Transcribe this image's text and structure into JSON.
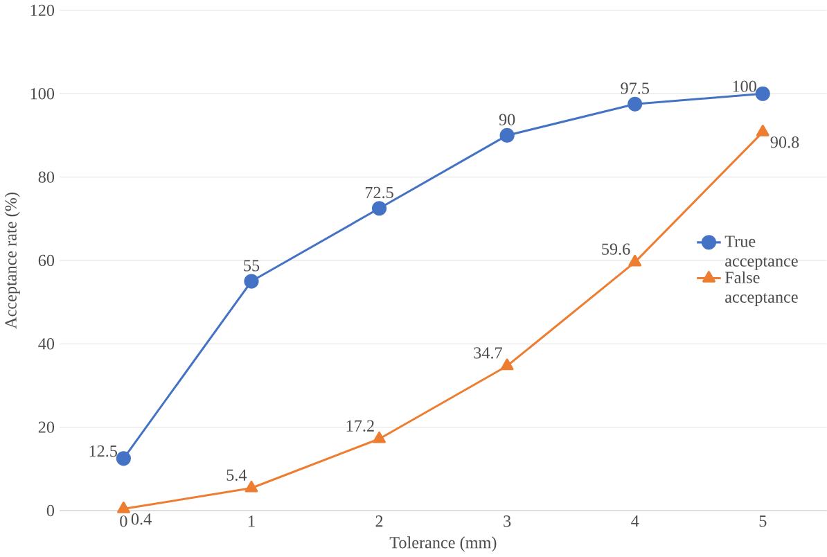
{
  "chart_data": {
    "type": "line",
    "xlabel": "Tolerance (mm)",
    "ylabel": "Acceptance rate (%)",
    "categories": [
      "0",
      "1",
      "2",
      "3",
      "4",
      "5"
    ],
    "series": [
      {
        "name": "True acceptance",
        "color": "#4472c4",
        "marker": "circle",
        "values": [
          12.5,
          55,
          72.5,
          90,
          97.5,
          100
        ]
      },
      {
        "name": "False acceptance",
        "color": "#ed7d31",
        "marker": "triangle",
        "values": [
          0.4,
          5.4,
          17.2,
          34.7,
          59.6,
          90.8
        ]
      }
    ],
    "ylim": [
      0,
      120
    ],
    "yticks": [
      0,
      20,
      40,
      60,
      80,
      100,
      120
    ],
    "grid": "y",
    "legend": "right",
    "data_labels": true,
    "line_style": "solid"
  }
}
